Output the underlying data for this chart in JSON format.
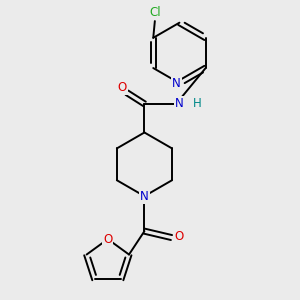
{
  "bg_color": "#ebebeb",
  "bond_color": "#000000",
  "bond_width": 1.4,
  "atom_colors": {
    "N": "#0000cc",
    "O": "#dd0000",
    "Cl": "#22aa22",
    "H": "#008888",
    "C": "#000000"
  },
  "font_size": 8.5,
  "dbo": 0.032
}
